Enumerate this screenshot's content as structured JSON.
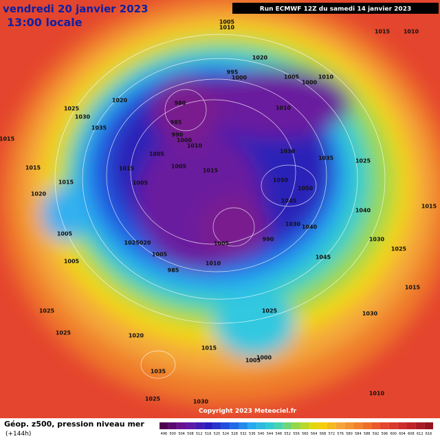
{
  "header": {
    "title": "vendredi 20 janvier 2023",
    "time": "13:00 locale",
    "run": "Run ECMWF 12Z du samedi 14 janvier 2023"
  },
  "footer": {
    "field": "Géop. z500, pression niveau mer",
    "lead": "(+144h)",
    "copyright": "Copyright 2023 Meteociel.fr"
  },
  "colorbar": {
    "ticks": [
      496,
      500,
      504,
      508,
      512,
      516,
      520,
      524,
      528,
      532,
      536,
      540,
      544,
      548,
      552,
      556,
      560,
      564,
      568,
      572,
      576,
      580,
      584,
      588,
      592,
      596,
      600,
      604,
      608,
      612,
      616
    ]
  },
  "isobar_labels": [
    "1005",
    "1010",
    "1015",
    "1010",
    "1020",
    "995",
    "1000",
    "1005",
    "1010",
    "1000",
    "1020",
    "980",
    "1010",
    "1025",
    "1030",
    "1035",
    "985",
    "990",
    "1000",
    "1010",
    "1015",
    "1005",
    "1030",
    "1035",
    "1025",
    "1015",
    "1005",
    "1015",
    "1015",
    "1005",
    "1050",
    "1050",
    "1045",
    "1015",
    "1020",
    "1040",
    "1030",
    "1040",
    "1005",
    "990",
    "1005",
    "1025020",
    "1030",
    "1025",
    "1005",
    "1045",
    "985",
    "1010",
    "1005",
    "1015",
    "1025",
    "1030",
    "1025",
    "1025",
    "1020",
    "1015",
    "1005",
    "1000",
    "1035",
    "1030",
    "1025",
    "1010",
    "1015"
  ]
}
